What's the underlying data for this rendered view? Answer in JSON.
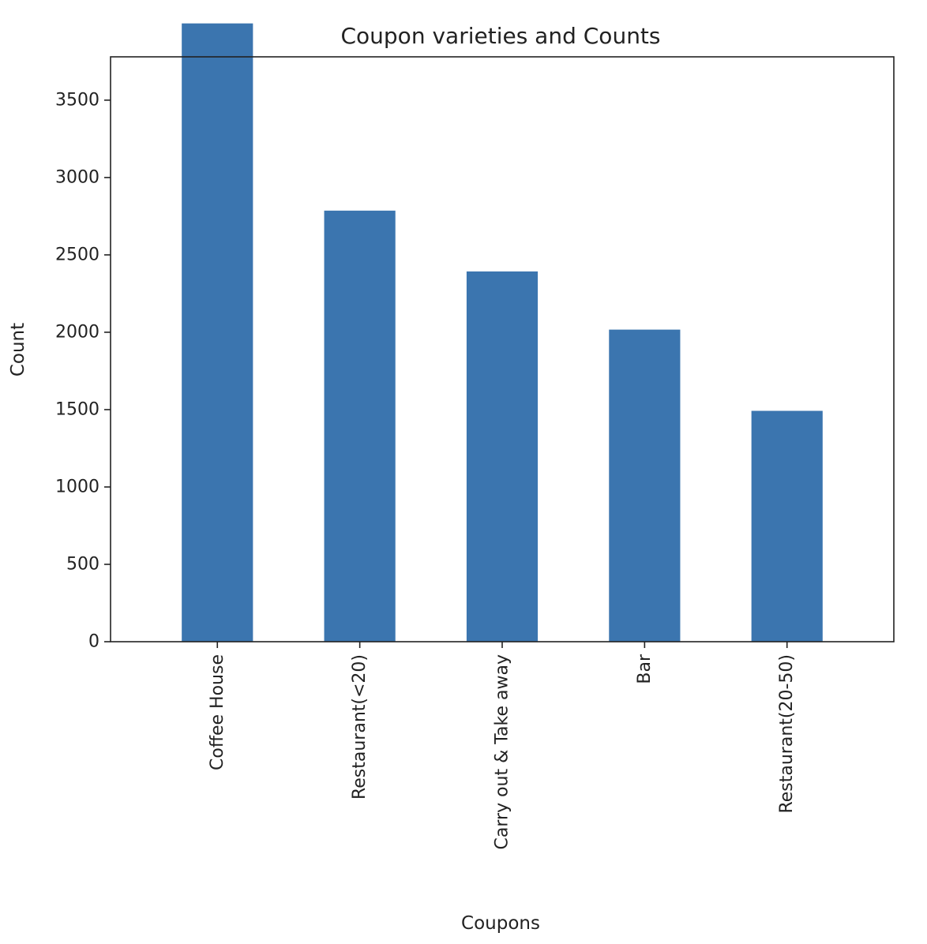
{
  "chart_data": {
    "type": "bar",
    "title": "Coupon varieties and Counts",
    "xlabel": "Coupons",
    "ylabel": "Count",
    "categories": [
      "Coffee House",
      "Restaurant(<20)",
      "Carry out & Take away",
      "Bar",
      "Restaurant(20-50)"
    ],
    "values": [
      3996,
      2786,
      2393,
      2017,
      1492
    ],
    "ylim": [
      0,
      3780
    ],
    "yticks": [
      0,
      500,
      1000,
      1500,
      2000,
      2500,
      3000,
      3500
    ],
    "grid": false,
    "legend": "none",
    "bar_color": "#3b75af"
  }
}
